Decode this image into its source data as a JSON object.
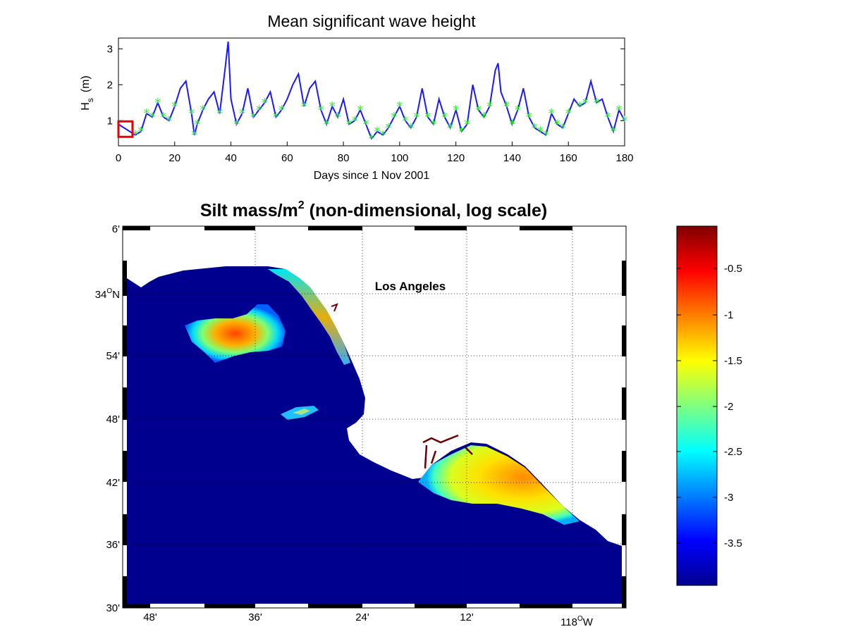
{
  "top_panel": {
    "title": "Mean significant wave height",
    "xlabel": "Days since 1 Nov 2001",
    "ylabel_main": "H",
    "ylabel_sub": "s",
    "ylabel_unit": "(m)",
    "xlim": [
      0,
      180
    ],
    "ylim": [
      0.3,
      3.3
    ],
    "xticks": [
      "0",
      "20",
      "40",
      "60",
      "80",
      "100",
      "120",
      "140",
      "160",
      "180"
    ],
    "yticks": [
      "1",
      "2",
      "3"
    ],
    "line_color": "#1a1aff",
    "marker_color": "#33ee33",
    "marker_symbol": "*",
    "highlight_box_color": "#ee0000",
    "highlight_box_day_range": [
      0,
      5
    ],
    "highlight_box_value_range": [
      0.55,
      0.98
    ]
  },
  "chart_data": {
    "type": "line",
    "title": "Mean significant wave height",
    "xlabel": "Days since 1 Nov 2001",
    "ylabel": "Hs (m)",
    "xlim": [
      0,
      180
    ],
    "ylim": [
      0.3,
      3.3
    ],
    "series": [
      {
        "x": [
          0,
          2,
          4,
          6,
          8,
          10,
          12,
          14,
          16,
          18,
          20,
          22,
          24,
          26,
          27,
          28,
          30,
          32,
          34,
          36,
          38,
          39,
          40,
          42,
          44,
          46,
          48,
          50,
          52,
          54,
          56,
          58,
          60,
          62,
          64,
          66,
          68,
          70,
          72,
          74,
          76,
          78,
          80,
          82,
          84,
          86,
          88,
          90,
          92,
          94,
          96,
          98,
          100,
          102,
          104,
          106,
          108,
          110,
          112,
          114,
          116,
          118,
          120,
          122,
          124,
          126,
          128,
          130,
          132,
          134,
          135,
          136,
          138,
          140,
          142,
          144,
          146,
          148,
          150,
          152,
          154,
          156,
          158,
          160,
          162,
          164,
          166,
          168,
          170,
          172,
          174,
          176,
          178,
          180
        ],
        "y": [
          0.9,
          0.8,
          0.7,
          0.6,
          0.7,
          1.2,
          1.1,
          1.5,
          1.1,
          1.0,
          1.4,
          1.9,
          2.1,
          1.2,
          0.6,
          0.9,
          1.3,
          1.6,
          1.8,
          1.2,
          2.5,
          3.2,
          1.6,
          0.9,
          1.2,
          1.9,
          1.1,
          1.3,
          1.5,
          1.8,
          1.1,
          1.3,
          1.6,
          2.0,
          2.3,
          1.4,
          1.9,
          2.1,
          1.3,
          0.9,
          1.4,
          1.1,
          1.6,
          0.9,
          1.0,
          1.3,
          0.9,
          0.5,
          0.7,
          0.6,
          0.8,
          1.1,
          1.4,
          1.0,
          0.8,
          1.1,
          1.9,
          1.1,
          0.9,
          1.6,
          1.1,
          0.8,
          1.3,
          0.7,
          0.9,
          2.0,
          1.3,
          1.1,
          1.4,
          2.4,
          2.6,
          1.8,
          1.4,
          0.9,
          1.3,
          1.9,
          1.1,
          0.8,
          0.7,
          0.6,
          1.2,
          0.9,
          0.8,
          1.2,
          1.6,
          1.4,
          1.5,
          2.1,
          1.5,
          1.6,
          1.1,
          0.7,
          1.3,
          1.0
        ]
      }
    ]
  },
  "map_panel": {
    "title_prefix": "Silt mass/m",
    "title_sup": "2",
    "title_suffix": " (non-dimensional, log scale)",
    "city_label": "Los Angeles",
    "lat_labels": [
      "6'",
      "34",
      "54'",
      "48'",
      "42'",
      "36'",
      "30'"
    ],
    "lat_34_sup": "O",
    "lat_34_suffix": "N",
    "lon_labels": [
      "48'",
      "36'",
      "24'",
      "12'"
    ],
    "lon_118": "118",
    "lon_118_sup": "O",
    "lon_118_suffix": "W",
    "ocean_color": "#00008f",
    "land_color": "#ffffff"
  },
  "colorbar": {
    "ticks": [
      "-0.5",
      "-1",
      "-1.5",
      "-2",
      "-2.5",
      "-3",
      "-3.5"
    ],
    "colormap": "jet"
  }
}
